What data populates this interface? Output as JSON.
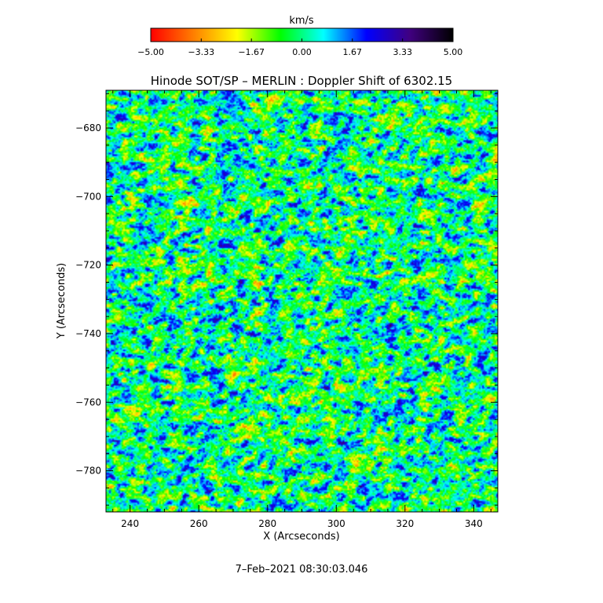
{
  "chart_data": {
    "type": "heatmap",
    "title": "Hinode SOT/SP – MERLIN : Doppler Shift of 6302.15",
    "xlabel": "X (Arcseconds)",
    "ylabel": "Y (Arcseconds)",
    "xlim": [
      233,
      347
    ],
    "ylim": [
      -792,
      -669
    ],
    "x_ticks": [
      240,
      260,
      280,
      300,
      320,
      340
    ],
    "y_ticks": [
      -680,
      -700,
      -720,
      -740,
      -760,
      -780
    ],
    "colorbar": {
      "label": "km/s",
      "range": [
        -5.0,
        5.0
      ],
      "tick_values": [
        -5.0,
        -3.33,
        -1.67,
        0.0,
        1.67,
        3.33,
        5.0
      ],
      "tick_labels": [
        "−5.00",
        "−3.33",
        "−1.67",
        "0.00",
        "1.67",
        "3.33",
        "5.00"
      ],
      "colormap": [
        "#ff0000",
        "#ff8000",
        "#ffff00",
        "#00ff00",
        "#00ffff",
        "#0000ff",
        "#400080",
        "#000000"
      ]
    },
    "field_description": "granulation Doppler velocity map, mostly near 0 km/s with scattered blue redshift lanes and yellow/orange blueshift patches",
    "date": "7–Feb–2021 08:30:03.046"
  },
  "x_tick_labels": [
    "240",
    "260",
    "280",
    "300",
    "320",
    "340"
  ],
  "y_tick_labels": [
    "−680",
    "−700",
    "−720",
    "−740",
    "−760",
    "−780"
  ]
}
